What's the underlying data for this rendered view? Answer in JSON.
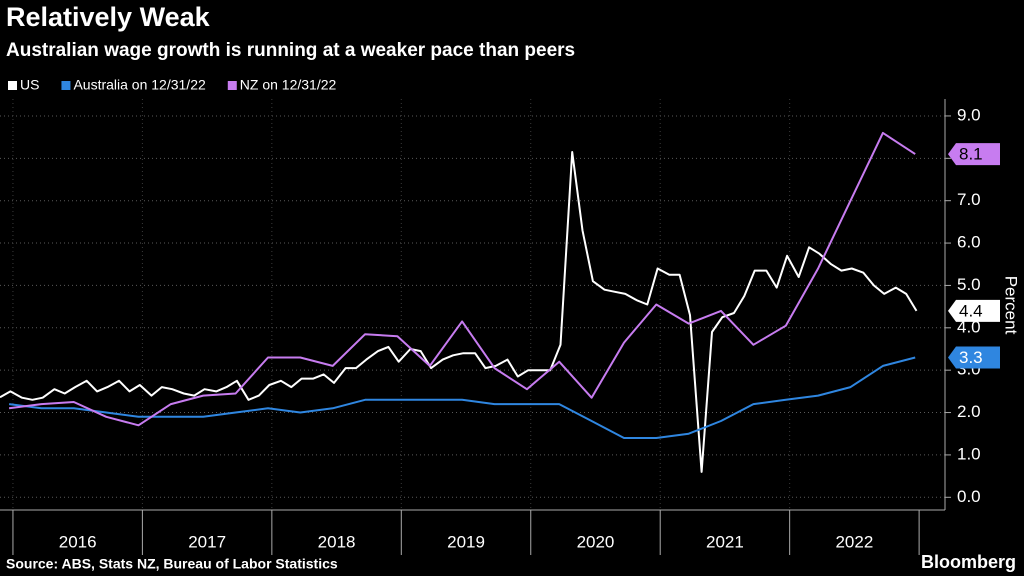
{
  "chart_data": {
    "type": "line",
    "title": "Relatively Weak",
    "subtitle": "Australian wage growth is running at a weaker pace than peers",
    "y_label": "Percent",
    "source": "Source: ABS, Stats NZ, Bureau of Labor Statistics",
    "brand": "Bloomberg",
    "categories": [
      "2016",
      "2017",
      "2018",
      "2019",
      "2020",
      "2021",
      "2022"
    ],
    "xlim": [
      2015.9,
      2023.2
    ],
    "ylim": [
      -0.3,
      9.4
    ],
    "yticks": [
      {
        "value": 0,
        "label": "0.0"
      },
      {
        "value": 1,
        "label": "1.0"
      },
      {
        "value": 2,
        "label": "2.0"
      },
      {
        "value": 3,
        "label": "3.0"
      },
      {
        "value": 4,
        "label": "4.0"
      },
      {
        "value": 5,
        "label": "5.0"
      },
      {
        "value": 6,
        "label": "6.0"
      },
      {
        "value": 7,
        "label": "7.0"
      },
      {
        "value": 8,
        "label": "8.0"
      },
      {
        "value": 9,
        "label": "9.0"
      }
    ],
    "grid": true,
    "series": [
      {
        "name": "US",
        "color": "#ffffff",
        "x": [
          2015.9,
          2015.98,
          2016.07,
          2016.15,
          2016.23,
          2016.32,
          2016.4,
          2016.48,
          2016.57,
          2016.65,
          2016.73,
          2016.82,
          2016.9,
          2016.98,
          2017.07,
          2017.15,
          2017.23,
          2017.32,
          2017.4,
          2017.48,
          2017.57,
          2017.65,
          2017.73,
          2017.82,
          2017.9,
          2017.98,
          2018.07,
          2018.15,
          2018.23,
          2018.32,
          2018.4,
          2018.48,
          2018.57,
          2018.65,
          2018.73,
          2018.82,
          2018.9,
          2018.98,
          2019.07,
          2019.15,
          2019.23,
          2019.32,
          2019.4,
          2019.48,
          2019.57,
          2019.65,
          2019.73,
          2019.82,
          2019.9,
          2019.98,
          2020.07,
          2020.15,
          2020.23,
          2020.32,
          2020.4,
          2020.48,
          2020.57,
          2020.65,
          2020.73,
          2020.82,
          2020.9,
          2020.98,
          2021.07,
          2021.15,
          2021.23,
          2021.32,
          2021.4,
          2021.48,
          2021.57,
          2021.65,
          2021.73,
          2021.82,
          2021.9,
          2021.98,
          2022.07,
          2022.15,
          2022.23,
          2022.32,
          2022.4,
          2022.48,
          2022.57,
          2022.65,
          2022.73,
          2022.82,
          2022.9,
          2022.98
        ],
        "values": [
          2.36,
          2.5,
          2.35,
          2.3,
          2.35,
          2.55,
          2.45,
          2.6,
          2.75,
          2.5,
          2.6,
          2.75,
          2.5,
          2.65,
          2.4,
          2.6,
          2.55,
          2.45,
          2.4,
          2.55,
          2.5,
          2.6,
          2.75,
          2.3,
          2.4,
          2.65,
          2.75,
          2.6,
          2.8,
          2.8,
          2.9,
          2.7,
          3.05,
          3.05,
          3.25,
          3.45,
          3.55,
          3.2,
          3.5,
          3.45,
          3.05,
          3.25,
          3.35,
          3.4,
          3.4,
          3.05,
          3.1,
          3.25,
          2.85,
          3.0,
          3.0,
          3.0,
          3.6,
          8.15,
          6.3,
          5.1,
          4.9,
          4.85,
          4.8,
          4.65,
          4.55,
          5.4,
          5.25,
          5.25,
          4.3,
          0.6,
          3.9,
          4.25,
          4.35,
          4.75,
          5.35,
          5.35,
          4.95,
          5.7,
          5.2,
          5.9,
          5.75,
          5.5,
          5.35,
          5.4,
          5.3,
          5.0,
          4.8,
          4.95,
          4.8,
          4.4
        ]
      },
      {
        "name": "Australia on 12/31/22",
        "color": "#2f86e0",
        "x": [
          2015.97,
          2016.22,
          2016.47,
          2016.72,
          2016.97,
          2017.22,
          2017.47,
          2017.72,
          2017.97,
          2018.22,
          2018.47,
          2018.72,
          2018.97,
          2019.22,
          2019.47,
          2019.72,
          2019.97,
          2020.22,
          2020.47,
          2020.72,
          2020.97,
          2021.22,
          2021.47,
          2021.72,
          2021.97,
          2022.22,
          2022.47,
          2022.72,
          2022.97
        ],
        "values": [
          2.2,
          2.1,
          2.1,
          2.0,
          1.9,
          1.9,
          1.9,
          2.0,
          2.1,
          2.0,
          2.1,
          2.3,
          2.3,
          2.3,
          2.3,
          2.2,
          2.2,
          2.2,
          1.8,
          1.4,
          1.4,
          1.5,
          1.8,
          2.2,
          2.3,
          2.4,
          2.6,
          3.1,
          3.3
        ]
      },
      {
        "name": "NZ on 12/31/22",
        "color": "#c77cf0",
        "x": [
          2015.97,
          2016.22,
          2016.47,
          2016.72,
          2016.97,
          2017.22,
          2017.47,
          2017.72,
          2017.97,
          2018.22,
          2018.47,
          2018.72,
          2018.97,
          2019.22,
          2019.47,
          2019.72,
          2019.97,
          2020.22,
          2020.47,
          2020.72,
          2020.97,
          2021.22,
          2021.47,
          2021.72,
          2021.97,
          2022.22,
          2022.47,
          2022.72,
          2022.97
        ],
        "values": [
          2.1,
          2.2,
          2.25,
          1.9,
          1.7,
          2.2,
          2.4,
          2.45,
          3.3,
          3.3,
          3.1,
          3.85,
          3.8,
          3.1,
          4.15,
          3.05,
          2.55,
          3.2,
          2.35,
          3.65,
          4.55,
          4.1,
          4.4,
          3.6,
          4.05,
          5.4,
          7.0,
          8.6,
          8.1
        ]
      }
    ]
  }
}
